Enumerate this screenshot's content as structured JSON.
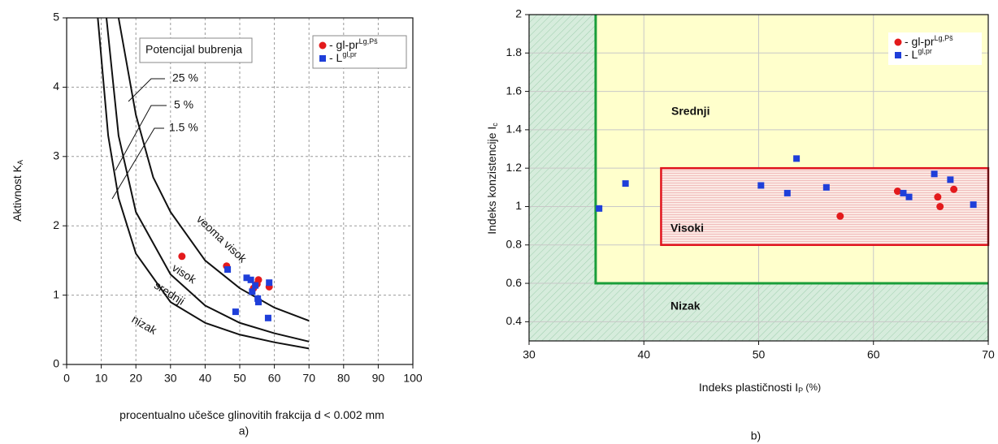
{
  "chart_data": [
    {
      "type": "scatter",
      "caption": "a)",
      "xlabel": "procentualno učešce glinovitih frakcija d < 0.002 mm",
      "ylabel": "Aktivnost K",
      "ylabel_sub": "A",
      "xlim": [
        0,
        100
      ],
      "xticks": [
        0,
        10,
        20,
        30,
        40,
        50,
        60,
        70,
        80,
        90,
        100
      ],
      "ylim": [
        0,
        5
      ],
      "yticks": [
        0,
        1,
        2,
        3,
        4,
        5
      ],
      "grid": true,
      "grid_style": "dashed",
      "legend": "upper right",
      "curve_legend_title": "Potencijal bubrenja",
      "curves": [
        {
          "label": "25 %",
          "x": [
            15,
            20,
            25,
            30,
            40,
            50,
            60,
            70
          ],
          "y": [
            5,
            3.6,
            2.7,
            2.2,
            1.5,
            1.1,
            0.82,
            0.63
          ]
        },
        {
          "label": "5 %",
          "x": [
            11.5,
            15,
            20,
            30,
            40,
            50,
            60,
            70
          ],
          "y": [
            5,
            3.3,
            2.2,
            1.3,
            0.85,
            0.6,
            0.45,
            0.33
          ]
        },
        {
          "label": "1.5 %",
          "x": [
            9,
            12,
            15,
            20,
            30,
            40,
            50,
            60,
            70
          ],
          "y": [
            5,
            3.3,
            2.4,
            1.6,
            0.9,
            0.6,
            0.43,
            0.32,
            0.23
          ]
        }
      ],
      "annotations": [
        "veoma visok",
        "visok",
        "srednji",
        "nizak"
      ],
      "series": [
        {
          "name": "- gl-pr",
          "name_superscript": "Lg,Pš",
          "color": "#e31a1c",
          "marker": "circle",
          "x": [
            33.3,
            46.2,
            54,
            55,
            55.4,
            58.5
          ],
          "y": [
            1.56,
            1.42,
            1.1,
            1.16,
            1.22,
            1.12
          ]
        },
        {
          "name": "- L",
          "name_superscript": "gl,pr",
          "color": "#1f3fd9",
          "marker": "square",
          "x": [
            46.5,
            52,
            53.2,
            53.6,
            55.2,
            55.4,
            48.8,
            58.2,
            58.5,
            54.5
          ],
          "y": [
            1.37,
            1.25,
            1.22,
            1.05,
            0.95,
            0.9,
            0.76,
            0.67,
            1.18,
            1.14
          ]
        }
      ]
    },
    {
      "type": "scatter",
      "caption": "b)",
      "xlabel": "Indeks plastičnosti I",
      "xlabel_sub": "P",
      "xlabel_suffix": " (%)",
      "ylabel": "Indeks konzistencije I",
      "ylabel_sub": "c",
      "xlim": [
        30,
        70
      ],
      "xticks": [
        30,
        40,
        50,
        60,
        70
      ],
      "ylim": [
        0.3,
        2
      ],
      "yticks": [
        0.4,
        0.6,
        0.8,
        1,
        1.2,
        1.4,
        1.6,
        1.8,
        2
      ],
      "grid": true,
      "grid_style": "solid",
      "legend": "upper right",
      "regions": [
        {
          "label": "Srednji",
          "x0": 35.8,
          "y0": 0.6,
          "color": "#1a9e3a"
        },
        {
          "label": "Visoki",
          "xlim": [
            41.5,
            70
          ],
          "ylim": [
            0.8,
            1.2
          ],
          "color": "#e0141e"
        },
        {
          "label": "Nizak",
          "color": "#5fb47a"
        }
      ],
      "series": [
        {
          "name": "- gl-pr",
          "name_superscript": "Lg,Pš",
          "color": "#e31a1c",
          "marker": "circle",
          "x": [
            57.1,
            62.1,
            65.6,
            65.8,
            67
          ],
          "y": [
            0.95,
            1.08,
            1.05,
            1.0,
            1.09
          ]
        },
        {
          "name": "- L",
          "name_superscript": "gl,pr",
          "color": "#1f3fd9",
          "marker": "square",
          "x": [
            36.1,
            38.4,
            50.2,
            52.5,
            53.3,
            55.9,
            62.6,
            63.1,
            65.3,
            66.7,
            68.7
          ],
          "y": [
            0.99,
            1.12,
            1.11,
            1.07,
            1.25,
            1.1,
            1.07,
            1.05,
            1.17,
            1.14,
            1.01
          ]
        }
      ]
    }
  ]
}
